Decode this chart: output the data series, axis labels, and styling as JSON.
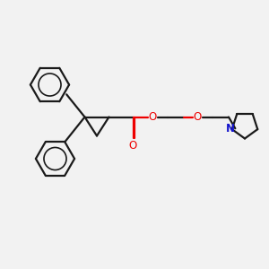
{
  "bg_color": "#f2f2f2",
  "bond_color": "#1a1a1a",
  "o_color": "#ee0000",
  "n_color": "#1414cc",
  "lw": 1.6,
  "lw_ring": 1.5,
  "fig_size": [
    3.0,
    3.0
  ],
  "dpi": 100,
  "xlim": [
    0,
    10
  ],
  "ylim": [
    0,
    10
  ]
}
